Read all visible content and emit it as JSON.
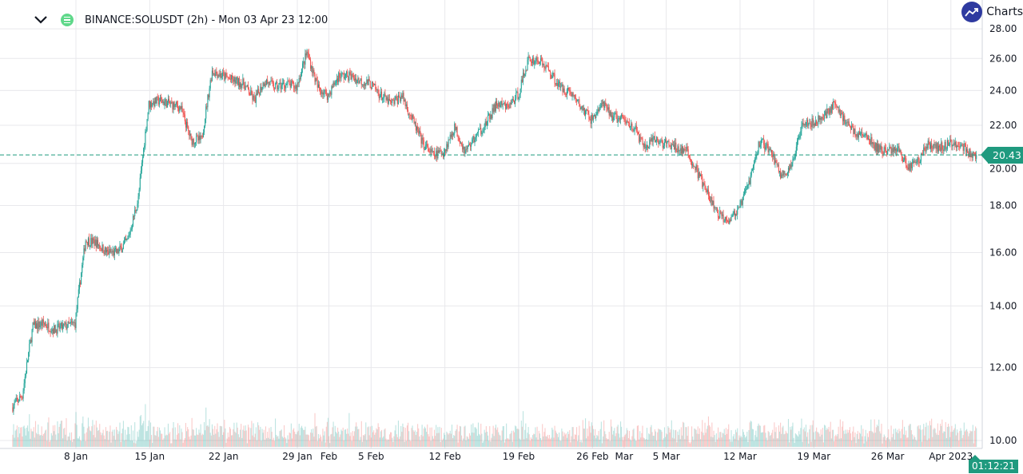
{
  "header": {
    "title": "BINANCE:SOLUSDT (2h) - Mon 03 Apr 23 12:00",
    "collapse_icon": "chevron-down-icon",
    "symbol_icon": "solana-icon"
  },
  "brand": {
    "label": "Charts",
    "icon": "trend-up-icon"
  },
  "last_price": "20.43",
  "countdown": "01:12:21",
  "colors": {
    "up": "#26a69a",
    "down": "#ef5350",
    "last_price": "#1f9a7f",
    "grid": "#e8e8ec"
  },
  "chart_data": {
    "type": "candlestick",
    "title": "BINANCE:SOLUSDT (2h) - Mon 03 Apr 23 12:00",
    "interval": "2h",
    "y_scale": "log",
    "ylim": [
      10,
      28
    ],
    "grid": true,
    "y_ticks": [
      "10.00",
      "12.00",
      "14.00",
      "16.00",
      "18.00",
      "20.00",
      "22.00",
      "24.00",
      "26.00",
      "28.00"
    ],
    "x_ticks": [
      {
        "label": "8 Jan",
        "date": "2023-01-08"
      },
      {
        "label": "15 Jan",
        "date": "2023-01-15"
      },
      {
        "label": "22 Jan",
        "date": "2023-01-22"
      },
      {
        "label": "29 Jan",
        "date": "2023-01-29"
      },
      {
        "label": "Feb",
        "date": "2023-02-01"
      },
      {
        "label": "5 Feb",
        "date": "2023-02-05"
      },
      {
        "label": "12 Feb",
        "date": "2023-02-12"
      },
      {
        "label": "19 Feb",
        "date": "2023-02-19"
      },
      {
        "label": "26 Feb",
        "date": "2023-02-26"
      },
      {
        "label": "Mar",
        "date": "2023-03-01"
      },
      {
        "label": "5 Mar",
        "date": "2023-03-05"
      },
      {
        "label": "12 Mar",
        "date": "2023-03-12"
      },
      {
        "label": "19 Mar",
        "date": "2023-03-19"
      },
      {
        "label": "26 Mar",
        "date": "2023-03-26"
      },
      {
        "label": "Apr 2023",
        "date": "2023-04-01"
      }
    ],
    "start_date": "2023-01-02",
    "daily_close_approx": [
      11.2,
      13.3,
      13.4,
      13.2,
      13.3,
      13.4,
      16.5,
      16.4,
      16.0,
      16.0,
      16.5,
      18.3,
      23.2,
      23.4,
      23.2,
      23.0,
      21.2,
      21.2,
      25.2,
      24.9,
      24.6,
      24.4,
      23.4,
      24.6,
      24.2,
      24.4,
      24.2,
      26.4,
      24.2,
      23.7,
      24.9,
      24.9,
      24.6,
      24.4,
      23.7,
      23.2,
      23.7,
      22.3,
      21.0,
      20.4,
      20.6,
      21.9,
      20.6,
      21.4,
      22.1,
      23.2,
      23.0,
      23.7,
      25.9,
      25.9,
      25.2,
      24.2,
      23.9,
      23.0,
      22.3,
      23.2,
      22.5,
      22.3,
      21.9,
      20.8,
      21.2,
      21.0,
      20.8,
      20.6,
      19.6,
      18.5,
      17.6,
      17.4,
      17.8,
      19.2,
      21.2,
      20.6,
      19.4,
      19.8,
      22.3,
      22.1,
      22.5,
      23.2,
      22.3,
      21.6,
      21.4,
      20.8,
      20.6,
      20.8,
      19.8,
      20.2,
      21.0,
      20.8,
      21.0,
      21.0,
      20.4,
      20.43
    ],
    "last_value": 20.43
  }
}
